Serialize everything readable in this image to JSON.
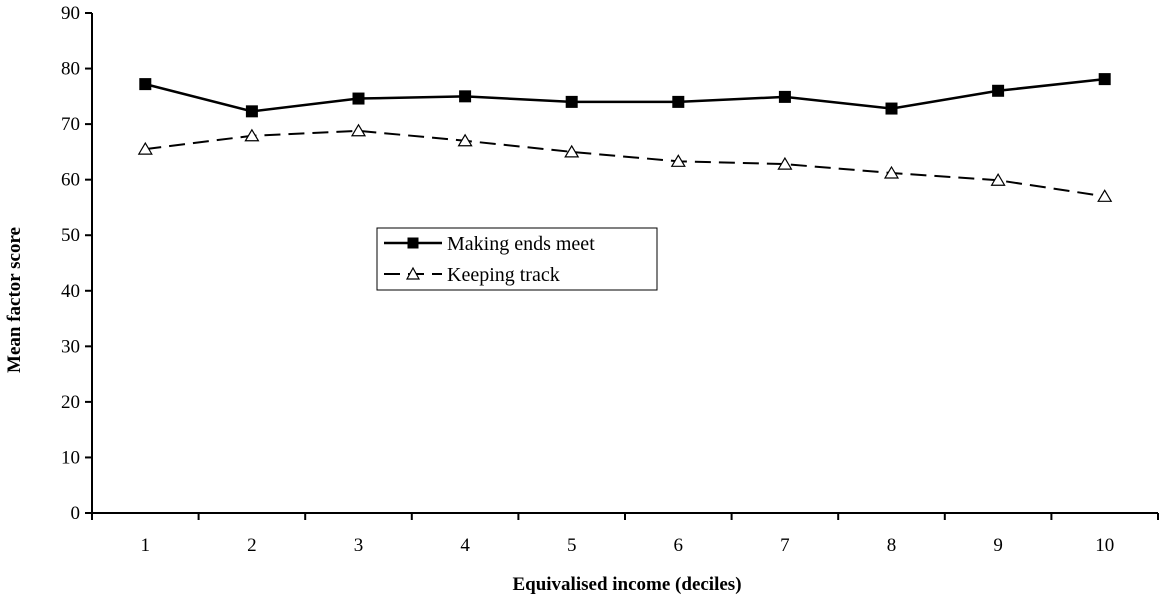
{
  "chart_data": {
    "type": "line",
    "title": "",
    "xlabel": "Equivalised income (deciles)",
    "ylabel": "Mean factor score",
    "x": [
      1,
      2,
      3,
      4,
      5,
      6,
      7,
      8,
      9,
      10
    ],
    "x_tick_labels": [
      "1",
      "2",
      "3",
      "4",
      "5",
      "6",
      "7",
      "8",
      "9",
      "10"
    ],
    "y_ticks": [
      0,
      10,
      20,
      30,
      40,
      50,
      60,
      70,
      80,
      90
    ],
    "ylim": [
      0,
      90
    ],
    "grid": false,
    "legend_position": "center-left",
    "series": [
      {
        "name": "Making ends meet",
        "values": [
          77.2,
          72.3,
          74.6,
          75.0,
          74.0,
          74.0,
          74.9,
          72.8,
          76.0,
          78.1
        ],
        "style": "solid",
        "marker": "filled-square",
        "color": "#000000"
      },
      {
        "name": "Keeping track",
        "values": [
          65.5,
          67.9,
          68.8,
          67.0,
          65.0,
          63.3,
          62.8,
          61.2,
          59.9,
          57.0
        ],
        "style": "dashed",
        "marker": "open-triangle",
        "color": "#000000"
      }
    ]
  }
}
